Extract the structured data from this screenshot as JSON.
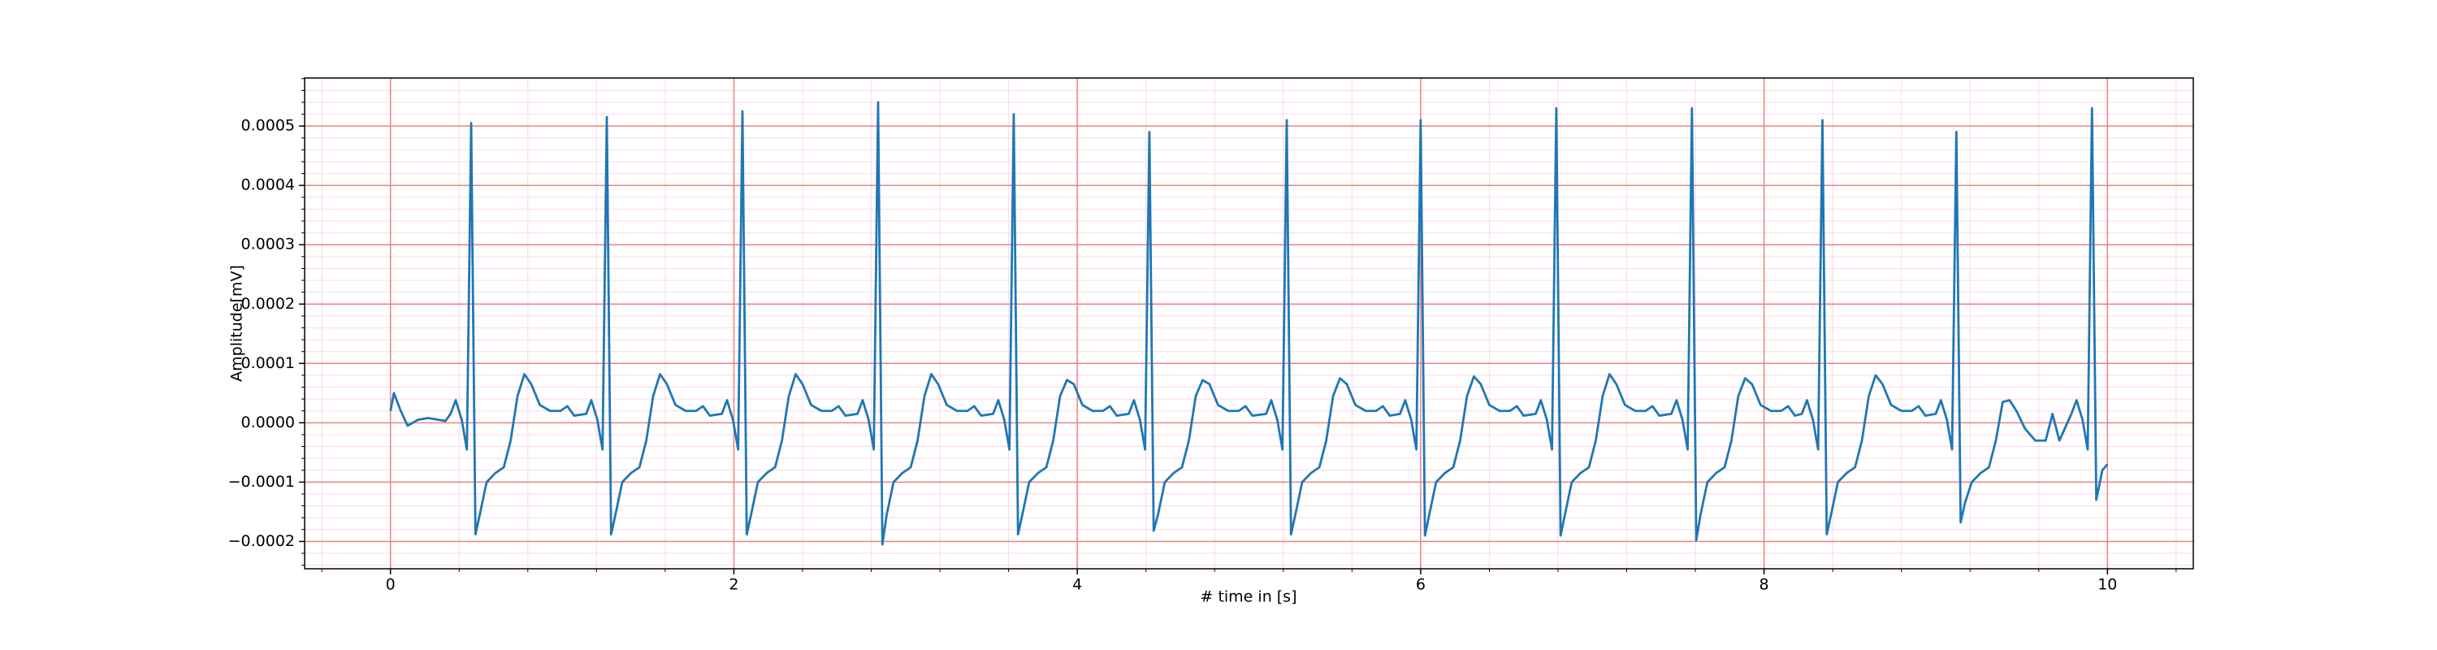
{
  "chart_data": {
    "type": "line",
    "xlabel": "# time in [s]",
    "ylabel": "Amplitude[mV]",
    "x": [
      0,
      0.02,
      0.06,
      0.1,
      0.16,
      0.22,
      0.28,
      0.32,
      0.35,
      0.38,
      0.415,
      0.445,
      0.47,
      0.495,
      0.52,
      0.56,
      0.61,
      0.66,
      0.7,
      0.74,
      0.78,
      0.82,
      0.87,
      0.93,
      0.99,
      1.03,
      1.07,
      1.14,
      1.17,
      1.205,
      1.235,
      1.26,
      1.285,
      1.31,
      1.35,
      1.4,
      1.45,
      1.49,
      1.53,
      1.57,
      1.61,
      1.66,
      1.72,
      1.78,
      1.82,
      1.86,
      1.93,
      1.96,
      1.995,
      2.025,
      2.05,
      2.075,
      2.1,
      2.14,
      2.19,
      2.24,
      2.28,
      2.32,
      2.36,
      2.4,
      2.45,
      2.51,
      2.57,
      2.61,
      2.65,
      2.72,
      2.75,
      2.785,
      2.815,
      2.84,
      2.865,
      2.89,
      2.93,
      2.98,
      3.03,
      3.07,
      3.11,
      3.15,
      3.19,
      3.24,
      3.3,
      3.36,
      3.4,
      3.44,
      3.51,
      3.54,
      3.575,
      3.605,
      3.63,
      3.655,
      3.68,
      3.72,
      3.77,
      3.82,
      3.86,
      3.9,
      3.94,
      3.98,
      4.03,
      4.09,
      4.15,
      4.19,
      4.23,
      4.3,
      4.33,
      4.365,
      4.395,
      4.42,
      4.445,
      4.47,
      4.51,
      4.56,
      4.61,
      4.65,
      4.69,
      4.73,
      4.77,
      4.82,
      4.88,
      4.94,
      4.98,
      5.02,
      5.1,
      5.13,
      5.165,
      5.195,
      5.22,
      5.245,
      5.27,
      5.31,
      5.36,
      5.41,
      5.45,
      5.49,
      5.53,
      5.57,
      5.62,
      5.68,
      5.74,
      5.78,
      5.82,
      5.88,
      5.91,
      5.945,
      5.975,
      6.0,
      6.025,
      6.05,
      6.09,
      6.14,
      6.19,
      6.23,
      6.27,
      6.31,
      6.35,
      6.4,
      6.46,
      6.52,
      6.56,
      6.6,
      6.67,
      6.7,
      6.735,
      6.765,
      6.79,
      6.815,
      6.84,
      6.88,
      6.93,
      6.98,
      7.02,
      7.06,
      7.1,
      7.14,
      7.19,
      7.25,
      7.31,
      7.35,
      7.39,
      7.46,
      7.49,
      7.525,
      7.555,
      7.58,
      7.605,
      7.63,
      7.67,
      7.72,
      7.77,
      7.81,
      7.85,
      7.89,
      7.93,
      7.98,
      8.04,
      8.1,
      8.14,
      8.18,
      8.22,
      8.25,
      8.285,
      8.315,
      8.34,
      8.365,
      8.39,
      8.43,
      8.48,
      8.53,
      8.57,
      8.61,
      8.65,
      8.69,
      8.74,
      8.8,
      8.86,
      8.9,
      8.94,
      9.0,
      9.03,
      9.065,
      9.095,
      9.12,
      9.145,
      9.17,
      9.21,
      9.26,
      9.31,
      9.35,
      9.39,
      9.43,
      9.47,
      9.52,
      9.58,
      9.64,
      9.68,
      9.72,
      9.79,
      9.82,
      9.855,
      9.885,
      9.91,
      9.935,
      9.97,
      10.0
    ],
    "values": [
      2e-05,
      5e-05,
      2e-05,
      -5e-06,
      5e-06,
      8e-06,
      5e-06,
      3e-06,
      1.5e-05,
      3.8e-05,
      5e-06,
      -4.5e-05,
      0.000505,
      -0.000188,
      -0.000155,
      -0.0001,
      -8.5e-05,
      -7.5e-05,
      -3e-05,
      4.5e-05,
      8.2e-05,
      6.5e-05,
      3e-05,
      2e-05,
      2e-05,
      2.8e-05,
      1.2e-05,
      1.5e-05,
      3.8e-05,
      5e-06,
      -4.5e-05,
      0.000515,
      -0.000188,
      -0.000155,
      -0.0001,
      -8.5e-05,
      -7.5e-05,
      -3e-05,
      4.5e-05,
      8.2e-05,
      6.5e-05,
      3e-05,
      2e-05,
      2e-05,
      2.8e-05,
      1.2e-05,
      1.5e-05,
      3.8e-05,
      5e-06,
      -4.5e-05,
      0.000525,
      -0.000188,
      -0.000155,
      -0.0001,
      -8.5e-05,
      -7.5e-05,
      -3e-05,
      4.5e-05,
      8.2e-05,
      6.5e-05,
      3e-05,
      2e-05,
      2e-05,
      2.8e-05,
      1.2e-05,
      1.5e-05,
      3.8e-05,
      5e-06,
      -4.5e-05,
      0.00054,
      -0.000205,
      -0.000155,
      -0.0001,
      -8.5e-05,
      -7.5e-05,
      -3e-05,
      4.5e-05,
      8.2e-05,
      6.5e-05,
      3e-05,
      2e-05,
      2e-05,
      2.8e-05,
      1.2e-05,
      1.5e-05,
      3.8e-05,
      5e-06,
      -4.5e-05,
      0.00052,
      -0.000188,
      -0.000155,
      -0.0001,
      -8.5e-05,
      -7.5e-05,
      -3e-05,
      4.5e-05,
      7.2e-05,
      6.5e-05,
      3e-05,
      2e-05,
      2e-05,
      2.8e-05,
      1.2e-05,
      1.5e-05,
      3.8e-05,
      5e-06,
      -4.5e-05,
      0.00049,
      -0.000182,
      -0.000155,
      -0.0001,
      -8.5e-05,
      -7.5e-05,
      -3e-05,
      4.5e-05,
      7.2e-05,
      6.5e-05,
      3e-05,
      2e-05,
      2e-05,
      2.8e-05,
      1.2e-05,
      1.5e-05,
      3.8e-05,
      5e-06,
      -4.5e-05,
      0.00051,
      -0.000188,
      -0.000155,
      -0.0001,
      -8.5e-05,
      -7.5e-05,
      -3e-05,
      4.5e-05,
      7.5e-05,
      6.5e-05,
      3e-05,
      2e-05,
      2e-05,
      2.8e-05,
      1.2e-05,
      1.5e-05,
      3.8e-05,
      5e-06,
      -4.5e-05,
      0.00051,
      -0.00019,
      -0.000155,
      -0.0001,
      -8.5e-05,
      -7.5e-05,
      -3e-05,
      4.5e-05,
      7.8e-05,
      6.5e-05,
      3e-05,
      2e-05,
      2e-05,
      2.8e-05,
      1.2e-05,
      1.5e-05,
      3.8e-05,
      5e-06,
      -4.5e-05,
      0.00053,
      -0.00019,
      -0.000155,
      -0.0001,
      -8.5e-05,
      -7.5e-05,
      -3e-05,
      4.5e-05,
      8.2e-05,
      6.5e-05,
      3e-05,
      2e-05,
      2e-05,
      2.8e-05,
      1.2e-05,
      1.5e-05,
      3.8e-05,
      5e-06,
      -4.5e-05,
      0.00053,
      -0.000198,
      -0.000155,
      -0.0001,
      -8.5e-05,
      -7.5e-05,
      -3e-05,
      4.5e-05,
      7.5e-05,
      6.5e-05,
      3e-05,
      2e-05,
      2e-05,
      2.8e-05,
      1.2e-05,
      1.5e-05,
      3.8e-05,
      5e-06,
      -4.5e-05,
      0.00051,
      -0.000188,
      -0.000155,
      -0.0001,
      -8.5e-05,
      -7.5e-05,
      -3e-05,
      4.5e-05,
      8e-05,
      6.5e-05,
      3e-05,
      2e-05,
      2e-05,
      2.8e-05,
      1.2e-05,
      1.5e-05,
      3.8e-05,
      5e-06,
      -4.5e-05,
      0.00049,
      -0.000168,
      -0.000135,
      -0.0001,
      -8.5e-05,
      -7.5e-05,
      -3e-05,
      3.5e-05,
      3.8e-05,
      2e-05,
      -1e-05,
      -3e-05,
      -3e-05,
      1.5e-05,
      -3e-05,
      1.5e-05,
      3.8e-05,
      5e-06,
      -4.5e-05,
      0.00053,
      -0.00013,
      -8e-05,
      -7e-05
    ],
    "color": "#1f77b4",
    "xlim": [
      -0.5,
      10.5
    ],
    "xticks": [
      0,
      2,
      4,
      6,
      8,
      10
    ],
    "ylim": [
      -0.000246,
      0.000581
    ],
    "yticks": [
      {
        "value": -0.0002,
        "label": "−0.0002"
      },
      {
        "value": -0.0001,
        "label": "−0.0001"
      },
      {
        "value": 0,
        "label": "0.0000"
      },
      0.0001,
      0.0002,
      0.0003,
      0.0004,
      0.0005
    ],
    "grid": true,
    "grid_color": "#f08080",
    "minor_grid": true,
    "minor_grid_color": "#ffd6e8"
  }
}
